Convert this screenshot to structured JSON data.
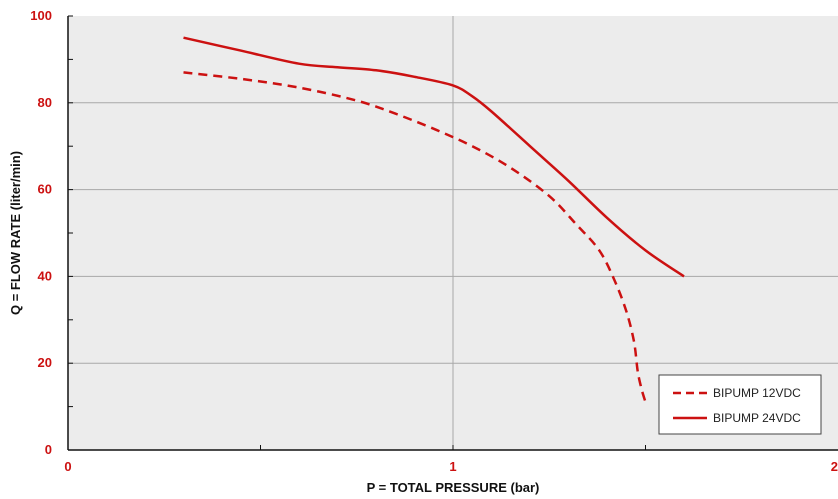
{
  "chart_data": {
    "type": "line",
    "title": "",
    "xlabel": "P = TOTAL PRESSURE (bar)",
    "ylabel": "Q = FLOW RATE (liter/min)",
    "xlim": [
      0,
      2
    ],
    "ylim": [
      0,
      100
    ],
    "x_ticks": [
      "0",
      "1",
      "2"
    ],
    "y_ticks": [
      "0",
      "20",
      "40",
      "60",
      "80",
      "100"
    ],
    "grid": true,
    "legend_position": "bottom-right",
    "colors": {
      "tick_label": "#cc1111",
      "line": "#cc1111",
      "plot_bg": "#ececec",
      "grid": "#a8a8a8"
    },
    "series": [
      {
        "name": "BIPUMP 12VDC",
        "style": "dashed",
        "x": [
          0.3,
          0.45,
          0.6,
          0.75,
          0.85,
          0.95,
          1.05,
          1.15,
          1.25,
          1.32,
          1.38,
          1.42,
          1.45,
          1.47,
          1.48,
          1.49,
          1.5
        ],
        "y": [
          87,
          85.5,
          83.5,
          80.5,
          77.5,
          74,
          70,
          65,
          58.5,
          52,
          46,
          39,
          32,
          25,
          18,
          14,
          11
        ]
      },
      {
        "name": "BIPUMP 24VDC",
        "style": "solid",
        "x": [
          0.3,
          0.45,
          0.6,
          0.7,
          0.8,
          0.9,
          1.0,
          1.05,
          1.1,
          1.2,
          1.3,
          1.4,
          1.5,
          1.6
        ],
        "y": [
          95,
          92,
          89,
          88.2,
          87.5,
          86,
          84,
          81.5,
          78,
          70,
          62,
          53.5,
          46,
          40
        ]
      }
    ]
  }
}
